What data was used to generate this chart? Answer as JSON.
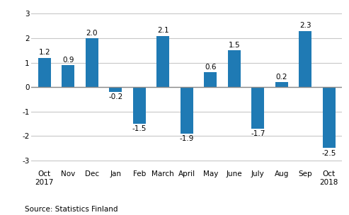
{
  "categories": [
    "Oct\n2017",
    "Nov",
    "Dec",
    "Jan",
    "Feb",
    "March",
    "April",
    "May",
    "June",
    "July",
    "Aug",
    "Sep",
    "Oct\n2018"
  ],
  "values": [
    1.2,
    0.9,
    2.0,
    -0.2,
    -1.5,
    2.1,
    -1.9,
    0.6,
    1.5,
    -1.7,
    0.2,
    2.3,
    -2.5
  ],
  "bar_color": "#1f7ab4",
  "ylim": [
    -3.3,
    3.3
  ],
  "yticks": [
    -3,
    -2,
    -1,
    0,
    1,
    2,
    3
  ],
  "source_text": "Source: Statistics Finland",
  "background_color": "#ffffff",
  "grid_color": "#c8c8c8",
  "bar_label_fontsize": 7.5,
  "tick_fontsize": 7.5,
  "source_fontsize": 7.5,
  "bar_width": 0.55
}
